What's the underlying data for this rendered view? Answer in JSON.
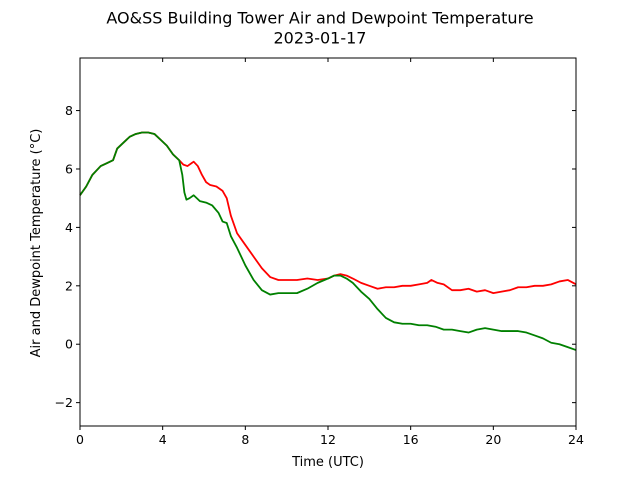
{
  "chart_data": {
    "type": "line",
    "title": "AO&SS Building Tower Air and Dewpoint Temperature",
    "subtitle": "2023-01-17",
    "xlabel": "Time (UTC)",
    "ylabel": "Air and Dewpoint Temperature (°C)",
    "xlim": [
      0,
      24
    ],
    "ylim": [
      -2.8,
      9.8
    ],
    "xticks": [
      0,
      4,
      8,
      12,
      16,
      20,
      24
    ],
    "yticks": [
      -2,
      0,
      2,
      4,
      6,
      8
    ],
    "grid": false,
    "legend": "none",
    "series": [
      {
        "color": "#ff0000",
        "x": [
          0,
          0.3,
          0.6,
          1.0,
          1.3,
          1.6,
          1.8,
          2.1,
          2.4,
          2.7,
          3.0,
          3.3,
          3.6,
          3.9,
          4.2,
          4.5,
          4.8,
          5.0,
          5.2,
          5.4,
          5.5,
          5.7,
          5.9,
          6.1,
          6.3,
          6.6,
          6.9,
          7.1,
          7.3,
          7.6,
          8.0,
          8.4,
          8.8,
          9.2,
          9.6,
          10.0,
          10.5,
          11.0,
          11.5,
          12.0,
          12.3,
          12.6,
          12.9,
          13.2,
          13.6,
          14.0,
          14.4,
          14.8,
          15.2,
          15.6,
          16.0,
          16.4,
          16.8,
          17.0,
          17.3,
          17.6,
          18.0,
          18.4,
          18.8,
          19.2,
          19.6,
          20.0,
          20.4,
          20.8,
          21.2,
          21.6,
          22.0,
          22.4,
          22.8,
          23.2,
          23.6,
          24.0
        ],
        "values": [
          5.1,
          5.4,
          5.8,
          6.1,
          6.2,
          6.3,
          6.7,
          6.9,
          7.1,
          7.2,
          7.25,
          7.25,
          7.2,
          7.0,
          6.8,
          6.5,
          6.3,
          6.15,
          6.1,
          6.2,
          6.25,
          6.1,
          5.8,
          5.55,
          5.45,
          5.4,
          5.25,
          5.0,
          4.4,
          3.8,
          3.4,
          3.0,
          2.6,
          2.3,
          2.2,
          2.2,
          2.2,
          2.25,
          2.2,
          2.25,
          2.35,
          2.4,
          2.35,
          2.25,
          2.1,
          2.0,
          1.9,
          1.95,
          1.95,
          2.0,
          2.0,
          2.05,
          2.1,
          2.2,
          2.1,
          2.05,
          1.85,
          1.85,
          1.9,
          1.8,
          1.85,
          1.75,
          1.8,
          1.85,
          1.95,
          1.95,
          2.0,
          2.0,
          2.05,
          2.15,
          2.2,
          2.05
        ]
      },
      {
        "color": "#008000",
        "x": [
          0,
          0.3,
          0.6,
          1.0,
          1.3,
          1.6,
          1.8,
          2.1,
          2.4,
          2.7,
          3.0,
          3.3,
          3.6,
          3.9,
          4.2,
          4.5,
          4.8,
          4.95,
          5.05,
          5.15,
          5.3,
          5.5,
          5.8,
          6.1,
          6.4,
          6.7,
          6.9,
          7.1,
          7.3,
          7.6,
          8.0,
          8.4,
          8.8,
          9.2,
          9.6,
          10.0,
          10.5,
          11.0,
          11.5,
          12.0,
          12.3,
          12.6,
          12.9,
          13.2,
          13.6,
          14.0,
          14.4,
          14.8,
          15.2,
          15.6,
          16.0,
          16.4,
          16.8,
          17.2,
          17.6,
          18.0,
          18.4,
          18.8,
          19.2,
          19.6,
          20.0,
          20.4,
          20.8,
          21.2,
          21.6,
          22.0,
          22.4,
          22.8,
          23.2,
          23.6,
          24.0
        ],
        "values": [
          5.1,
          5.4,
          5.8,
          6.1,
          6.2,
          6.3,
          6.7,
          6.9,
          7.1,
          7.2,
          7.25,
          7.25,
          7.2,
          7.0,
          6.8,
          6.5,
          6.3,
          5.8,
          5.2,
          4.95,
          5.0,
          5.1,
          4.9,
          4.85,
          4.75,
          4.5,
          4.2,
          4.15,
          3.7,
          3.3,
          2.7,
          2.2,
          1.85,
          1.7,
          1.75,
          1.75,
          1.75,
          1.9,
          2.1,
          2.25,
          2.35,
          2.35,
          2.25,
          2.1,
          1.8,
          1.55,
          1.2,
          0.9,
          0.75,
          0.7,
          0.7,
          0.65,
          0.65,
          0.6,
          0.5,
          0.5,
          0.45,
          0.4,
          0.5,
          0.55,
          0.5,
          0.45,
          0.45,
          0.45,
          0.4,
          0.3,
          0.2,
          0.05,
          0.0,
          -0.1,
          -0.2
        ]
      }
    ]
  }
}
